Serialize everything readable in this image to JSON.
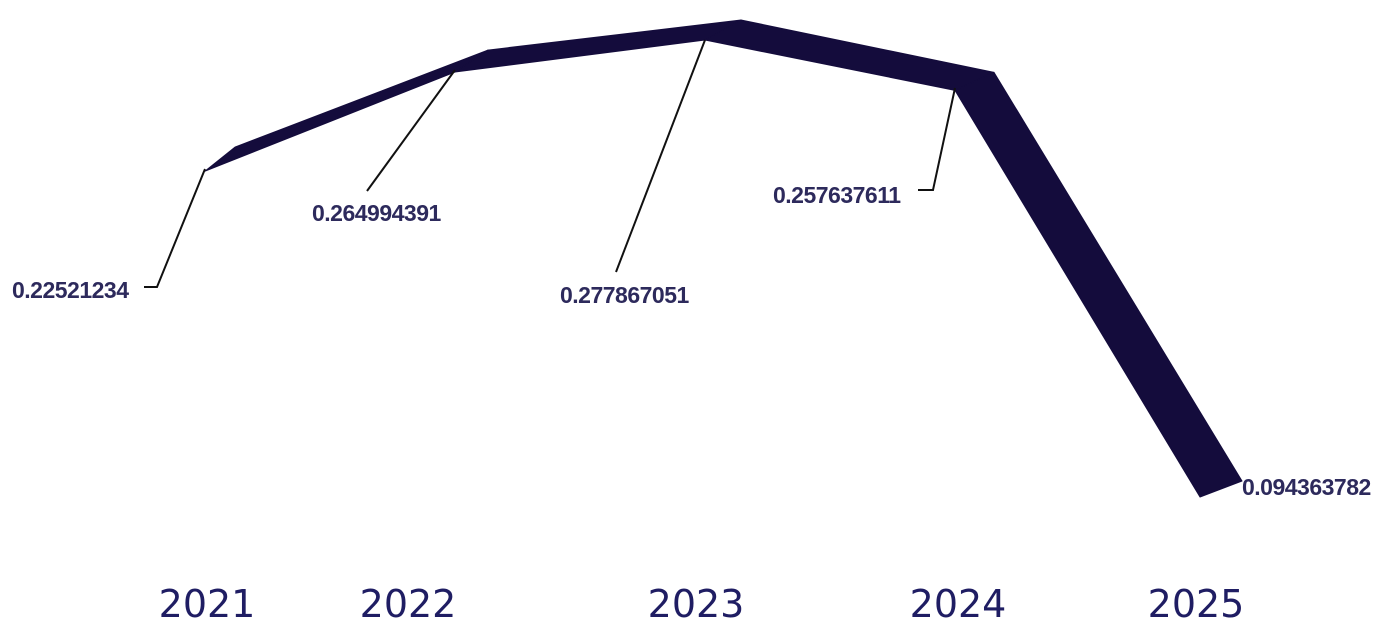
{
  "chart_data": {
    "type": "line",
    "categories": [
      "2021",
      "2022",
      "2023",
      "2024",
      "2025"
    ],
    "values": [
      0.22521234,
      0.264994391,
      0.277867051,
      0.257637611,
      0.094363782
    ],
    "data_labels": [
      "0.22521234",
      "0.264994391",
      "0.277867051",
      "0.257637611",
      "0.094363782"
    ],
    "title": "",
    "xlabel": "",
    "ylabel": "",
    "ylim": [
      0.08,
      0.29
    ],
    "grid": false,
    "legend": "none",
    "colors": {
      "ribbon_top": "#1e1640",
      "ribbon_front": "#140c3c",
      "label_text": "#2d2a5c",
      "year_text": "#1f1d63",
      "leader_line": "#111111"
    }
  }
}
